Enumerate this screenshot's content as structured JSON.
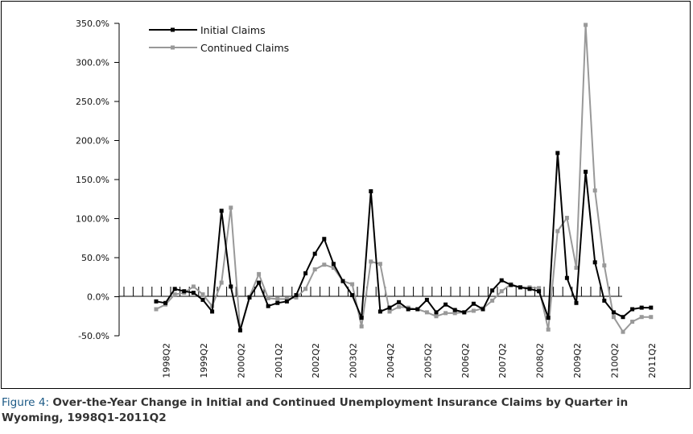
{
  "caption": {
    "lead": "Figure 4: ",
    "text": "Over-the-Year Change in Initial and Continued Unemployment Insurance Claims by Quarter in Wyoming, 1998Q1-2011Q2"
  },
  "chart_data": {
    "type": "line",
    "title": "",
    "xlabel": "",
    "ylabel": "",
    "ylim": [
      -50,
      350
    ],
    "y_ticks": [
      -50,
      0,
      50,
      100,
      150,
      200,
      250,
      300,
      350
    ],
    "y_tick_labels": [
      "-50.0%",
      "0.0%",
      "50.0%",
      "100.0%",
      "150.0%",
      "200.0%",
      "250.0%",
      "300.0%",
      "350.0%"
    ],
    "x_tick_labels": [
      "1998Q2",
      "1999Q2",
      "2000Q2",
      "2001Q2",
      "2002Q2",
      "2003Q2",
      "2004Q2",
      "2005Q2",
      "2006Q2",
      "2007Q2",
      "2008Q2",
      "2009Q2",
      "2100Q2",
      "2011Q2"
    ],
    "x_tick_label_index": [
      1,
      5,
      9,
      13,
      17,
      21,
      25,
      29,
      33,
      37,
      41,
      45,
      49,
      53
    ],
    "legend_position": "top-left",
    "grid": false,
    "series": [
      {
        "name": "Initial Claims",
        "color": "#000000",
        "values": [
          -6,
          -8,
          10,
          7,
          5,
          -4,
          -19,
          110,
          13,
          -43,
          -1,
          18,
          -12,
          -8,
          -6,
          2,
          30,
          55,
          74,
          42,
          20,
          2,
          -27,
          135,
          -19,
          -14,
          -7,
          -16,
          -16,
          -4,
          -20,
          -10,
          -17,
          -20,
          -9,
          -16,
          8,
          21,
          15,
          12,
          10,
          7,
          -27,
          184,
          24,
          -8,
          160,
          44,
          -5,
          -20,
          -26,
          -16,
          -14,
          -14
        ]
      },
      {
        "name": "Continued Claims",
        "color": "#999999",
        "values": [
          -16,
          -10,
          3,
          5,
          13,
          3,
          -12,
          18,
          114,
          -43,
          0,
          29,
          -2,
          -3,
          -3,
          -1,
          10,
          35,
          41,
          37,
          20,
          16,
          -38,
          45,
          42,
          -19,
          -13,
          -14,
          -16,
          -20,
          -25,
          -21,
          -21,
          -20,
          -18,
          -15,
          -5,
          7,
          16,
          12,
          12,
          11,
          -42,
          84,
          101,
          37,
          348,
          136,
          40,
          -26,
          -45,
          -32,
          -26,
          -26
        ]
      }
    ]
  }
}
